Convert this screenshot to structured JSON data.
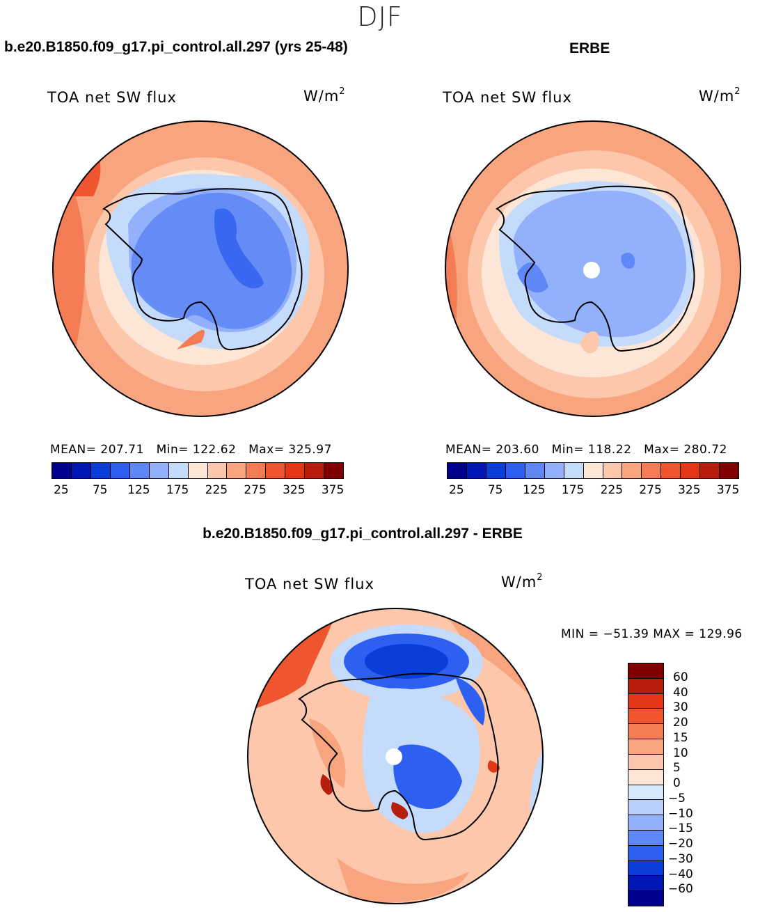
{
  "season": "DJF",
  "panels": {
    "model": {
      "title": "b.e20.B1850.f09_g17.pi_control.all.297 (yrs 25-48)",
      "variable": "TOA net SW flux",
      "units_base": "W/m",
      "units_exp": "2",
      "stats": "MEAN= 207.71   Min= 122.62   Max= 325.97"
    },
    "obs": {
      "title": "ERBE",
      "variable": "TOA net SW flux",
      "units_base": "W/m",
      "units_exp": "2",
      "stats": "MEAN= 203.60   Min= 118.22   Max= 280.72"
    },
    "diff": {
      "title": "b.e20.B1850.f09_g17.pi_control.all.297 - ERBE",
      "variable": "TOA net SW flux",
      "units_base": "W/m",
      "units_exp": "2",
      "minmax": "MIN = −51.39 MAX = 129.96"
    }
  },
  "colorbar_abs": {
    "colors": [
      "#00008c",
      "#0019b4",
      "#0a3ed8",
      "#2d5ff0",
      "#5f87f5",
      "#93b1fa",
      "#c5dbfc",
      "#fde6d6",
      "#fcc7ab",
      "#f8a47e",
      "#f47c55",
      "#ef5630",
      "#e23616",
      "#b61d0a",
      "#7f0000"
    ],
    "labels": [
      "25",
      "75",
      "125",
      "175",
      "225",
      "275",
      "325",
      "375"
    ]
  },
  "colorbar_diff": {
    "colors": [
      "#7f0000",
      "#b61d0a",
      "#e23616",
      "#ef5630",
      "#f47c55",
      "#f8a47e",
      "#fcc7ab",
      "#fde6d6",
      "#d8e8fc",
      "#b8d1fb",
      "#93b1fa",
      "#5f87f5",
      "#2d5ff0",
      "#0a3ed8",
      "#0019b4",
      "#00008c"
    ],
    "labels": [
      "60",
      "40",
      "30",
      "20",
      "15",
      "10",
      "5",
      "0",
      "−5",
      "−10",
      "−15",
      "−20",
      "−30",
      "−40",
      "−60"
    ]
  }
}
